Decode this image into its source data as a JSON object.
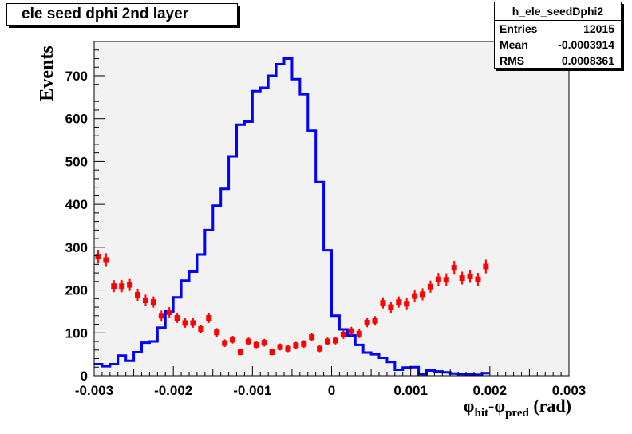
{
  "title": "ele seed dphi 2nd layer",
  "stats": {
    "name": "h_ele_seedDphi2",
    "rows": [
      {
        "label": "Entries",
        "value": "12015"
      },
      {
        "label": "Mean",
        "value": "-0.0003914"
      },
      {
        "label": "RMS",
        "value": "0.0008361"
      }
    ]
  },
  "chart_data": {
    "type": "histogram",
    "ylabel": "Events",
    "xlabel_parts": {
      "phi1": "φ",
      "sub1": "hit",
      "dash": "-",
      "phi2": "φ",
      "sub2": "pred",
      "unit": " (rad)"
    },
    "xlim": [
      -0.003,
      0.003
    ],
    "ylim": [
      0,
      780
    ],
    "x_ticks": [
      -0.003,
      -0.002,
      -0.001,
      0,
      0.001,
      0.002,
      0.003
    ],
    "x_tick_labels": [
      "-0.003",
      "-0.002",
      "-0.001",
      "0",
      "0.001",
      "0.002",
      "0.003"
    ],
    "y_ticks": [
      0,
      100,
      200,
      300,
      400,
      500,
      600,
      700
    ],
    "y_tick_labels": [
      "0",
      "100",
      "200",
      "300",
      "400",
      "500",
      "600",
      "700"
    ],
    "grid": false,
    "colors": {
      "histogram": "#0000ff",
      "points": "#ff0000",
      "frame_bg": "#f2f2f2"
    },
    "series": [
      {
        "kind": "step",
        "bin_width": 0.0001,
        "values": [
          27,
          22,
          27,
          47,
          35,
          55,
          77,
          80,
          112,
          150,
          183,
          222,
          243,
          283,
          340,
          397,
          436,
          512,
          586,
          593,
          664,
          672,
          700,
          727,
          740,
          692,
          657,
          572,
          452,
          293,
          140,
          108,
          94,
          72,
          54,
          50,
          42,
          32,
          14,
          19,
          20,
          4,
          12,
          10,
          8,
          5,
          4,
          3,
          2,
          6
        ]
      },
      {
        "kind": "points",
        "bin_width": 0.0001,
        "values": [
          278,
          270,
          209,
          209,
          212,
          189,
          176,
          172,
          140,
          148,
          135,
          123,
          123,
          109,
          135,
          101,
          76,
          84,
          55,
          80,
          72,
          77,
          55,
          67,
          63,
          71,
          74,
          90,
          63,
          80,
          82,
          96,
          104,
          98,
          124,
          128,
          170,
          160,
          172,
          168,
          186,
          190,
          208,
          225,
          224,
          252,
          228,
          232,
          225,
          255
        ],
        "errors": [
          16,
          16,
          14,
          14,
          14,
          14,
          13,
          13,
          12,
          12,
          12,
          11,
          11,
          10,
          12,
          10,
          9,
          9,
          7,
          9,
          8,
          9,
          7,
          8,
          8,
          8,
          9,
          9,
          8,
          9,
          9,
          10,
          10,
          10,
          11,
          11,
          13,
          13,
          13,
          13,
          14,
          14,
          14,
          15,
          15,
          16,
          15,
          15,
          15,
          16
        ]
      }
    ]
  }
}
